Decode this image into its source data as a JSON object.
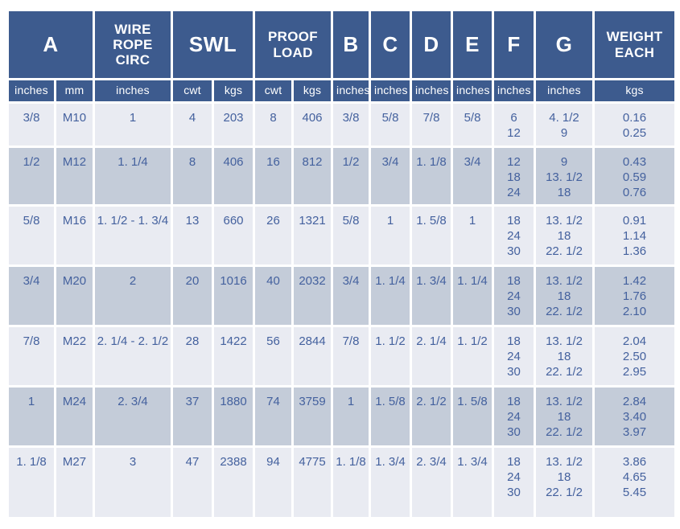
{
  "title": "Wire rope fitting dimensions and load specification table",
  "colors": {
    "header_bg": "#3d5b8e",
    "row_light": "#e9ebf2",
    "row_dark": "#c4ccd9",
    "data_text": "#44619e",
    "header_text": "#ffffff",
    "page_bg": "#ffffff"
  },
  "table": {
    "column_groups": [
      {
        "label": "A",
        "span": 2
      },
      {
        "label": "WIRE ROPE CIRC",
        "span": 1
      },
      {
        "label": "SWL",
        "span": 2
      },
      {
        "label": "PROOF LOAD",
        "span": 2
      },
      {
        "label": "B",
        "span": 1
      },
      {
        "label": "C",
        "span": 1
      },
      {
        "label": "D",
        "span": 1
      },
      {
        "label": "E",
        "span": 1
      },
      {
        "label": "F",
        "span": 1
      },
      {
        "label": "G",
        "span": 1
      },
      {
        "label": "WEIGHT EACH",
        "span": 1
      }
    ],
    "unit_row": [
      "inches",
      "mm",
      "inches",
      "cwt",
      "kgs",
      "cwt",
      "kgs",
      "inches",
      "inches",
      "inches",
      "inches",
      "inches",
      "inches",
      "kgs"
    ],
    "rows": [
      [
        "3/8",
        "M10",
        "1",
        "4",
        "203",
        "8",
        "406",
        "3/8",
        "5/8",
        "7/8",
        "5/8",
        "6\n12",
        "4. 1/2\n9",
        "0.16\n0.25"
      ],
      [
        "1/2",
        "M12",
        "1. 1/4",
        "8",
        "406",
        "16",
        "812",
        "1/2",
        "3/4",
        "1. 1/8",
        "3/4",
        "12\n18\n24",
        "9\n13. 1/2\n18",
        "0.43\n0.59\n0.76"
      ],
      [
        "5/8",
        "M16",
        "1. 1/2 - 1. 3/4",
        "13",
        "660",
        "26",
        "1321",
        "5/8",
        "1",
        "1. 5/8",
        "1",
        "18\n24\n30",
        "13. 1/2\n18\n22. 1/2",
        "0.91\n1.14\n1.36"
      ],
      [
        "3/4",
        "M20",
        "2",
        "20",
        "1016",
        "40",
        "2032",
        "3/4",
        "1. 1/4",
        "1. 3/4",
        "1. 1/4",
        "18\n24\n30",
        "13. 1/2\n18\n22. 1/2",
        "1.42\n1.76\n2.10"
      ],
      [
        "7/8",
        "M22",
        "2. 1/4 - 2. 1/2",
        "28",
        "1422",
        "56",
        "2844",
        "7/8",
        "1. 1/2",
        "2. 1/4",
        "1. 1/2",
        "18\n24\n30",
        "13. 1/2\n18\n22. 1/2",
        "2.04\n2.50\n2.95"
      ],
      [
        "1",
        "M24",
        "2. 3/4",
        "37",
        "1880",
        "74",
        "3759",
        "1",
        "1. 5/8",
        "2. 1/2",
        "1. 5/8",
        "18\n24\n30",
        "13. 1/2\n18\n22. 1/2",
        "2.84\n3.40\n3.97"
      ],
      [
        "1. 1/8",
        "M27",
        "3",
        "47",
        "2388",
        "94",
        "4775",
        "1. 1/8",
        "1. 3/4",
        "2. 3/4",
        "1. 3/4",
        "18\n24\n30",
        "13. 1/2\n18\n22. 1/2",
        "3.86\n4.65\n5.45"
      ]
    ]
  }
}
